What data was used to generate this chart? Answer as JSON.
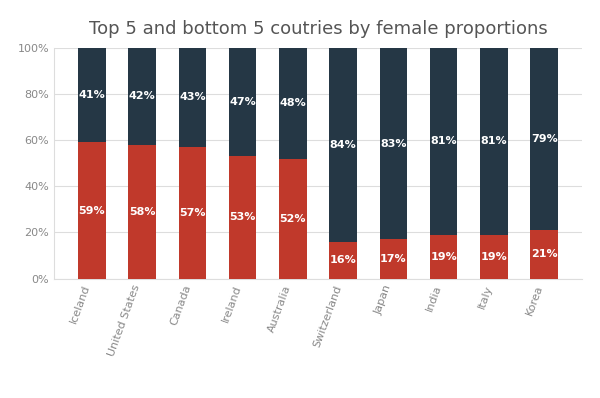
{
  "title": "Top 5 and bottom 5 coutries by female proportions",
  "categories": [
    "Iceland",
    "United States",
    "Canada",
    "Ireland",
    "Australia",
    "Switzerland",
    "Japan",
    "India",
    "Italy",
    "Korea"
  ],
  "female_pct": [
    59,
    58,
    57,
    53,
    52,
    16,
    17,
    19,
    19,
    21
  ],
  "male_pct": [
    41,
    42,
    43,
    47,
    48,
    84,
    83,
    81,
    81,
    79
  ],
  "female_color": "#c0392b",
  "male_color": "#253745",
  "background_color": "#ffffff",
  "title_fontsize": 13,
  "label_fontsize": 8,
  "tick_fontsize": 8,
  "legend_fontsize": 8.5,
  "bar_width": 0.55,
  "ylim": [
    0,
    100
  ]
}
